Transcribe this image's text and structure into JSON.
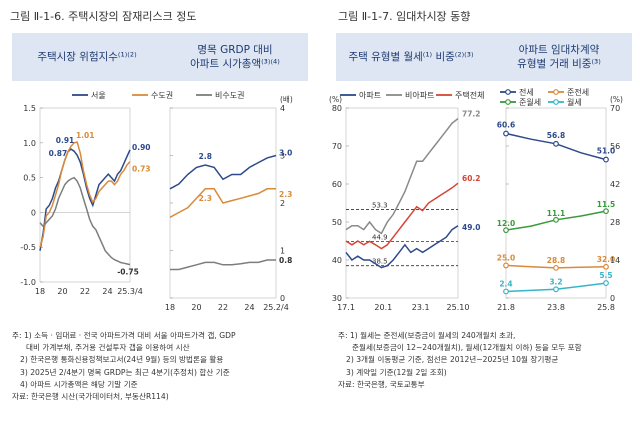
{
  "left": {
    "fig_title": "그림 Ⅱ-1-6. 주택시장의 잠재리스크 정도",
    "panel1_header": "주택시장 위험지수⁽¹⁾⁽²⁾",
    "panel2_header_line1": "명목 GRDP 대비",
    "panel2_header_line2": "아파트 시가총액⁽³⁾⁽⁴⁾",
    "notes": [
      "주: 1) 소득 · 임대료 · 전국 아파트가격 대비 서울 아파트가격 갭, GDP",
      "대비 가계부채, 주거용 건설투자 갭을 이용하여 시산",
      "2) 한국은행 통화신용정책보고서(24년 9월) 등의 방법론을 활용",
      "3) 2025년 2/4분기 명목 GRDP는 최근 4분기(추정치) 합산 기준",
      "4) 아파트 시가총액은 해당 기말 기준",
      "자료: 한국은행 시산(국가데이터처, 부동산R114)"
    ]
  },
  "right": {
    "fig_title": "그림 Ⅱ-1-7. 임대차시장 동향",
    "panel1_header": "주택 유형별 월세⁽¹⁾ 비중⁽²⁾⁽³⁾",
    "panel2_header_line1": "아파트 임대차계약",
    "panel2_header_line2": "유형별 거래 비중⁽³⁾",
    "notes": [
      "주: 1) 월세는 준전세(보증금이 월세의 240개월치 초과,",
      "준월세(보증금이 12~240개월치), 월세(12개월치 이하) 등을 모두 포함",
      "2) 3개월 이동평균 기준, 점선은 2012년~2025년 10월 장기평균",
      "3) 계약일 기준(12월 2일 조회)",
      "자료: 한국은행, 국토교통부"
    ]
  },
  "colors": {
    "seoul": "#2e4a8b",
    "sudo": "#d98a3a",
    "bisudo": "#7d7d7d",
    "apt": "#2e4a8b",
    "non_apt": "#8a8a8a",
    "total": "#d64535",
    "jeonse": "#2e4a8b",
    "junjeonse": "#d98a3a",
    "junwolse": "#3a9a3a",
    "wolse": "#38b4c9",
    "header_bg": "#dde6f2",
    "header_text": "#1f3a73"
  },
  "chart_data": [
    {
      "type": "line",
      "title": "주택시장 위험지수⁽¹⁾⁽²⁾",
      "ylim": [
        -1.0,
        1.5
      ],
      "yticks": [
        "-1.0",
        "-0.5",
        "0",
        "0.5",
        "1.0",
        "1.5"
      ],
      "x_ticks": [
        "18",
        "20",
        "22",
        "24",
        "25.3/4"
      ],
      "x": [
        "18.1",
        "18.3",
        "18.4",
        "19.1",
        "19.2",
        "19.3",
        "19.4",
        "20.1",
        "20.2",
        "20.3",
        "20.4",
        "21.1",
        "21.2",
        "21.3",
        "21.4",
        "22.1",
        "22.2",
        "22.3",
        "22.4",
        "23.1",
        "23.2",
        "23.3",
        "23.4",
        "24.1",
        "24.2",
        "24.3",
        "24.4",
        "25.1",
        "25.2",
        "25.3"
      ],
      "series": [
        {
          "name": "서울",
          "values": [
            -0.55,
            -0.3,
            0.05,
            0.1,
            0.2,
            0.35,
            0.45,
            0.6,
            0.75,
            0.87,
            0.91,
            0.88,
            0.82,
            0.72,
            0.55,
            0.35,
            0.2,
            0.1,
            0.25,
            0.4,
            0.45,
            0.5,
            0.55,
            0.5,
            0.45,
            0.55,
            0.6,
            0.7,
            0.8,
            0.9
          ]
        },
        {
          "name": "수도권",
          "values": [
            -0.5,
            -0.35,
            -0.05,
            0.0,
            0.1,
            0.25,
            0.4,
            0.6,
            0.75,
            0.87,
            0.95,
            1.0,
            1.01,
            0.85,
            0.6,
            0.4,
            0.25,
            0.15,
            0.2,
            0.3,
            0.35,
            0.4,
            0.45,
            0.45,
            0.4,
            0.45,
            0.55,
            0.6,
            0.68,
            0.73
          ]
        },
        {
          "name": "비수도권",
          "values": [
            -0.15,
            -0.2,
            -0.15,
            -0.1,
            -0.05,
            0.05,
            0.2,
            0.3,
            0.4,
            0.45,
            0.48,
            0.5,
            0.45,
            0.35,
            0.2,
            0.05,
            -0.1,
            -0.2,
            -0.25,
            -0.35,
            -0.45,
            -0.55,
            -0.6,
            -0.65,
            -0.68,
            -0.7,
            -0.72,
            -0.73,
            -0.74,
            -0.75
          ]
        }
      ],
      "annotations": [
        {
          "text": "0.91",
          "series": "서울"
        },
        {
          "text": "0.87",
          "series": "서울"
        },
        {
          "text": "1.01",
          "series": "수도권"
        },
        {
          "text": "0.90",
          "series": "서울"
        },
        {
          "text": "0.73",
          "series": "수도권"
        },
        {
          "text": "-0.75",
          "series": "비수도권"
        }
      ]
    },
    {
      "type": "line",
      "title": "명목 GRDP 대비 아파트 시가총액⁽³⁾⁽⁴⁾",
      "yunit": "(배)",
      "ylim": [
        0,
        4
      ],
      "yticks": [
        "0",
        "1",
        "2",
        "3",
        "4"
      ],
      "x_ticks": [
        "18",
        "20",
        "22",
        "24",
        "25.2/4"
      ],
      "x": [
        "18",
        "19",
        "20",
        "20.5",
        "21",
        "21.5",
        "22",
        "22.5",
        "23",
        "23.5",
        "24",
        "24.5",
        "25.2"
      ],
      "series": [
        {
          "name": "서울",
          "values": [
            2.3,
            2.4,
            2.6,
            2.75,
            2.8,
            2.75,
            2.5,
            2.6,
            2.6,
            2.75,
            2.85,
            2.95,
            3.0
          ]
        },
        {
          "name": "수도권",
          "values": [
            1.7,
            1.8,
            1.9,
            2.1,
            2.3,
            2.3,
            2.0,
            2.05,
            2.1,
            2.15,
            2.2,
            2.3,
            2.3
          ]
        },
        {
          "name": "비수도권",
          "values": [
            0.6,
            0.6,
            0.65,
            0.7,
            0.75,
            0.75,
            0.7,
            0.7,
            0.72,
            0.75,
            0.75,
            0.8,
            0.8
          ]
        }
      ],
      "annotations": [
        {
          "text": "2.8",
          "series": "서울"
        },
        {
          "text": "2.3",
          "series": "수도권"
        },
        {
          "text": "3.0",
          "series": "서울"
        },
        {
          "text": "2.3",
          "series": "수도권"
        },
        {
          "text": "0.8",
          "series": "비수도권"
        }
      ]
    },
    {
      "type": "line",
      "title": "주택 유형별 월세⁽¹⁾ 비중⁽²⁾⁽³⁾",
      "yunit": "(%)",
      "ylim": [
        30,
        80
      ],
      "yticks": [
        "30",
        "40",
        "50",
        "60",
        "70",
        "80"
      ],
      "x_ticks": [
        "17.1",
        "20.1",
        "23.1",
        "25.10"
      ],
      "x": [
        "17.1",
        "17.7",
        "18.1",
        "18.7",
        "19.1",
        "19.7",
        "20.1",
        "20.7",
        "21.1",
        "21.7",
        "22.1",
        "22.7",
        "23.1",
        "23.7",
        "24.1",
        "24.7",
        "25.1",
        "25.4",
        "25.7",
        "25.10"
      ],
      "series": [
        {
          "name": "아파트",
          "values": [
            42,
            40,
            41,
            40,
            40,
            39,
            38,
            38.5,
            40,
            42,
            44,
            42,
            43,
            42,
            43,
            44,
            45,
            46,
            48,
            49.0
          ]
        },
        {
          "name": "비아파트",
          "values": [
            48,
            49,
            49,
            48,
            50,
            48,
            47,
            50,
            52,
            55,
            58,
            62,
            66,
            66,
            68,
            70,
            72,
            74,
            76,
            77.2
          ]
        },
        {
          "name": "주택전체",
          "values": [
            45,
            44,
            45,
            44,
            44.9,
            44,
            43,
            44,
            46,
            48,
            50,
            52,
            54,
            53,
            55,
            56,
            57,
            58,
            59,
            60.2
          ]
        }
      ],
      "reference_lines": [
        {
          "label": "53.3",
          "value": 53.3
        },
        {
          "label": "44.9",
          "value": 44.9
        },
        {
          "label": "38.5",
          "value": 38.5
        }
      ],
      "annotations": [
        {
          "text": "77.2",
          "series": "비아파트"
        },
        {
          "text": "60.2",
          "series": "주택전체"
        },
        {
          "text": "49.0",
          "series": "아파트"
        }
      ]
    },
    {
      "type": "line",
      "title": "아파트 임대차계약 유형별 거래 비중⁽³⁾",
      "yunit": "(%)",
      "ylim": [
        0,
        70
      ],
      "yticks": [
        "0",
        "14",
        "28",
        "42",
        "56",
        "70"
      ],
      "x_ticks": [
        "21.8",
        "23.8",
        "25.8"
      ],
      "x": [
        "21.8",
        "22.8",
        "23.8",
        "24.8",
        "25.8"
      ],
      "series": [
        {
          "name": "전세",
          "values": [
            60.6,
            58.5,
            56.8,
            53.5,
            51.0
          ]
        },
        {
          "name": "준전세",
          "values": [
            12.0,
            11.5,
            11.1,
            11.3,
            11.5
          ]
        },
        {
          "name": "준월세",
          "values": [
            25.0,
            26.5,
            28.8,
            30.2,
            32.0
          ]
        },
        {
          "name": "월세",
          "values": [
            2.4,
            2.8,
            3.2,
            4.3,
            5.5
          ]
        }
      ],
      "annotations": [
        {
          "text": "60.6"
        },
        {
          "text": "56.8"
        },
        {
          "text": "51.0"
        },
        {
          "text": "25.0"
        },
        {
          "text": "28.8"
        },
        {
          "text": "32.0"
        },
        {
          "text": "12.0"
        },
        {
          "text": "11.1"
        },
        {
          "text": "11.5"
        },
        {
          "text": "2.4"
        },
        {
          "text": "3.2"
        },
        {
          "text": "5.5"
        }
      ]
    }
  ]
}
